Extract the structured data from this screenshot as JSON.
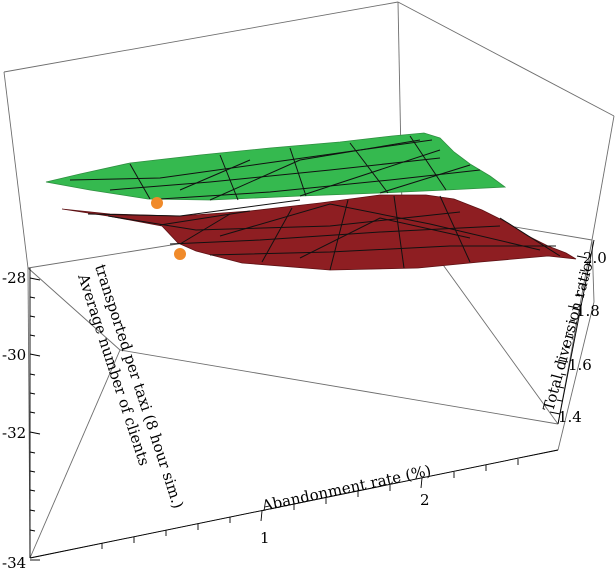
{
  "chart_data": {
    "type": "surface3d",
    "axes": {
      "x": {
        "label": "Abandonment rate (%)",
        "ticks": [
          "1",
          "2"
        ]
      },
      "y": {
        "label": "Average number of clients transported per taxi (8 hour sim.)",
        "label_lines": [
          "Average number of clients",
          "transported per taxi (8 hour sim.)"
        ],
        "ticks": [
          "-28",
          "-30",
          "-32",
          "-34"
        ]
      },
      "z": {
        "label": "Total diversion ratio",
        "ticks": [
          "1.4",
          "1.6",
          "1.8",
          "2.0"
        ]
      }
    },
    "series": [
      {
        "color": "#35b94f",
        "edge": "#2f8f41"
      },
      {
        "color": "#8e1e22",
        "edge": "#5e1114"
      }
    ],
    "markers": [
      {
        "color": "#f08a2a"
      },
      {
        "color": "#f08a2a"
      }
    ]
  }
}
